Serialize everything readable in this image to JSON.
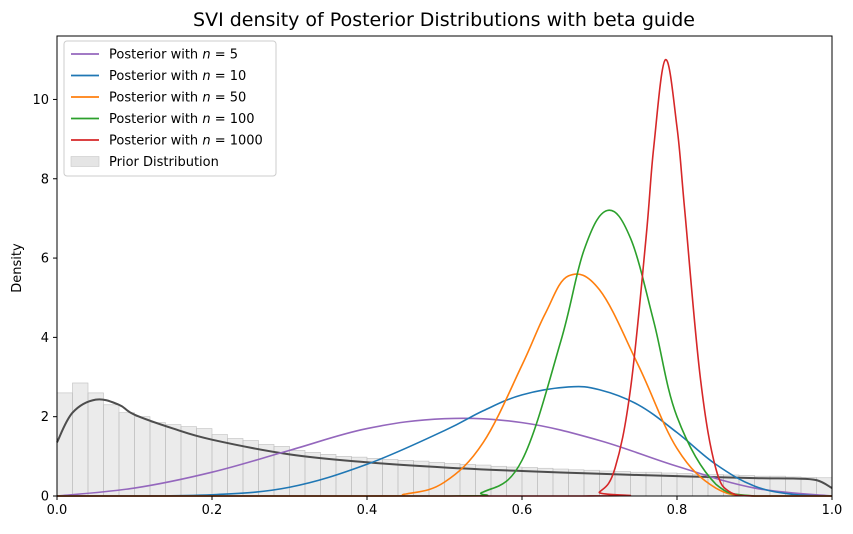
{
  "chart_data": {
    "type": "line",
    "title": "SVI density of Posterior Distributions with beta guide",
    "xlabel": "",
    "ylabel": "Density",
    "xlim": [
      0.0,
      1.0
    ],
    "ylim": [
      0,
      11.6
    ],
    "x_ticks": [
      "0.0",
      "0.2",
      "0.4",
      "0.6",
      "0.8",
      "1.0"
    ],
    "y_ticks": [
      "0",
      "2",
      "4",
      "6",
      "8",
      "10"
    ],
    "grid": false,
    "legend_position": "upper left",
    "series": [
      {
        "name": "Posterior with n = 5",
        "legend_prefix": "Posterior with ",
        "legend_var": "n",
        "legend_rest": " = 5",
        "color": "#9467bd",
        "x": [
          0.0,
          0.1,
          0.2,
          0.3,
          0.4,
          0.5,
          0.6,
          0.7,
          0.8,
          0.9,
          1.0
        ],
        "y": [
          0.0,
          0.2,
          0.6,
          1.15,
          1.7,
          1.95,
          1.85,
          1.4,
          0.75,
          0.2,
          0.0
        ]
      },
      {
        "name": "Posterior with n = 10",
        "legend_prefix": "Posterior with ",
        "legend_var": "n",
        "legend_rest": " = 10",
        "color": "#1f77b4",
        "x": [
          0.0,
          0.1,
          0.2,
          0.3,
          0.4,
          0.5,
          0.55,
          0.6,
          0.66,
          0.7,
          0.75,
          0.8,
          0.85,
          0.9,
          0.95,
          1.0
        ],
        "y": [
          0.0,
          0.0,
          0.03,
          0.22,
          0.8,
          1.65,
          2.15,
          2.55,
          2.75,
          2.68,
          2.3,
          1.6,
          0.8,
          0.25,
          0.04,
          0.0
        ]
      },
      {
        "name": "Posterior with n = 50",
        "legend_prefix": "Posterior with ",
        "legend_var": "n",
        "legend_rest": " = 50",
        "color": "#ff7f0e",
        "x": [
          0.0,
          0.4,
          0.45,
          0.5,
          0.55,
          0.6,
          0.63,
          0.66,
          0.7,
          0.75,
          0.8,
          0.85,
          0.9,
          1.0
        ],
        "y": [
          0.0,
          0.0,
          0.05,
          0.35,
          1.35,
          3.3,
          4.6,
          5.55,
          5.2,
          3.3,
          1.2,
          0.2,
          0.0,
          0.0
        ]
      },
      {
        "name": "Posterior with n = 100",
        "legend_prefix": "Posterior with ",
        "legend_var": "n",
        "legend_rest": " = 100",
        "color": "#2ca02c",
        "x": [
          0.0,
          0.5,
          0.55,
          0.6,
          0.65,
          0.68,
          0.71,
          0.74,
          0.77,
          0.8,
          0.85,
          0.9,
          1.0
        ],
        "y": [
          0.0,
          0.0,
          0.1,
          0.9,
          3.9,
          6.2,
          7.2,
          6.5,
          4.4,
          2.0,
          0.3,
          0.0,
          0.0
        ]
      },
      {
        "name": "Posterior with n = 1000",
        "legend_prefix": "Posterior with ",
        "legend_var": "n",
        "legend_rest": " = 1000",
        "color": "#d62728",
        "x": [
          0.0,
          0.68,
          0.7,
          0.72,
          0.74,
          0.76,
          0.77,
          0.785,
          0.8,
          0.81,
          0.83,
          0.85,
          0.87,
          0.9,
          1.0
        ],
        "y": [
          0.0,
          0.0,
          0.1,
          0.7,
          2.7,
          6.5,
          8.8,
          11.0,
          9.3,
          7.2,
          3.0,
          0.7,
          0.08,
          0.0,
          0.0
        ]
      }
    ],
    "prior_kde": {
      "color": "#4d4d4d",
      "x": [
        0.0,
        0.02,
        0.05,
        0.08,
        0.1,
        0.15,
        0.2,
        0.3,
        0.4,
        0.5,
        0.6,
        0.7,
        0.8,
        0.9,
        0.95,
        0.98,
        1.0
      ],
      "y": [
        1.35,
        2.1,
        2.43,
        2.3,
        2.05,
        1.7,
        1.42,
        1.05,
        0.85,
        0.72,
        0.63,
        0.56,
        0.5,
        0.45,
        0.44,
        0.4,
        0.2
      ]
    },
    "prior_histogram": {
      "name": "Prior Distribution",
      "bin_width": 0.02,
      "values": [
        2.6,
        2.85,
        2.6,
        2.3,
        2.1,
        2.0,
        1.85,
        1.8,
        1.75,
        1.7,
        1.55,
        1.45,
        1.4,
        1.3,
        1.25,
        1.15,
        1.1,
        1.05,
        1.0,
        0.98,
        0.95,
        0.92,
        0.9,
        0.88,
        0.85,
        0.82,
        0.8,
        0.78,
        0.75,
        0.73,
        0.72,
        0.7,
        0.68,
        0.66,
        0.65,
        0.63,
        0.62,
        0.6,
        0.6,
        0.58,
        0.57,
        0.55,
        0.54,
        0.53,
        0.52,
        0.5,
        0.5,
        0.48,
        0.47,
        0.46
      ]
    }
  }
}
